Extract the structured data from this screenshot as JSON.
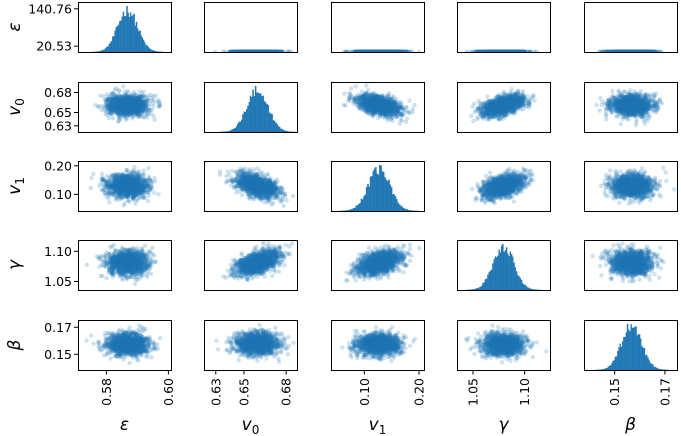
{
  "chart_data": {
    "type": "pairplot",
    "title": "",
    "parameters": [
      {
        "key": "eps",
        "symbol": "ε",
        "italic": true,
        "sub": ""
      },
      {
        "key": "v0",
        "symbol": "v",
        "italic": true,
        "sub": "0"
      },
      {
        "key": "v1",
        "symbol": "v",
        "italic": true,
        "sub": "1"
      },
      {
        "key": "gamma",
        "symbol": "γ",
        "italic": true,
        "sub": ""
      },
      {
        "key": "beta",
        "symbol": "β",
        "italic": true,
        "sub": ""
      }
    ],
    "x_ticks": [
      [
        {
          "v": 0.58,
          "label": "0.58"
        },
        {
          "v": 0.6,
          "label": "0.60"
        }
      ],
      [
        {
          "v": 0.63,
          "label": "0.63"
        },
        {
          "v": 0.65,
          "label": "0.65"
        },
        {
          "v": 0.68,
          "label": "0.68"
        }
      ],
      [
        {
          "v": 0.1,
          "label": "0.10"
        },
        {
          "v": 0.2,
          "label": "0.20"
        }
      ],
      [
        {
          "v": 1.05,
          "label": "1.05"
        },
        {
          "v": 1.1,
          "label": "1.10"
        }
      ],
      [
        {
          "v": 0.15,
          "label": "0.15"
        },
        {
          "v": 0.17,
          "label": "0.17"
        }
      ]
    ],
    "x_ranges": [
      [
        0.571,
        0.601
      ],
      [
        0.622,
        0.688
      ],
      [
        0.04,
        0.21
      ],
      [
        1.035,
        1.125
      ],
      [
        0.138,
        0.175
      ]
    ],
    "y_ticks": [
      [
        {
          "v": 140.76,
          "label": "140.76"
        },
        {
          "v": 20.53,
          "label": "20.53"
        }
      ],
      [
        {
          "v": 0.68,
          "label": "0.68"
        },
        {
          "v": 0.65,
          "label": "0.65"
        },
        {
          "v": 0.63,
          "label": "0.63"
        }
      ],
      [
        {
          "v": 0.2,
          "label": "0.20"
        },
        {
          "v": 0.1,
          "label": "0.10"
        }
      ],
      [
        {
          "v": 1.1,
          "label": "1.10"
        },
        {
          "v": 1.05,
          "label": "1.05"
        }
      ],
      [
        {
          "v": 0.17,
          "label": "0.17"
        },
        {
          "v": 0.15,
          "label": "0.15"
        }
      ]
    ],
    "y_ranges": [
      [
        0,
        161
      ],
      [
        0.62,
        0.695
      ],
      [
        0.04,
        0.215
      ],
      [
        1.035,
        1.118
      ],
      [
        0.138,
        0.175
      ]
    ],
    "distributions": {
      "eps": {
        "mean": 0.587,
        "sd": 0.0032
      },
      "v0": {
        "mean": 0.66,
        "sd": 0.0075
      },
      "v1": {
        "mean": 0.128,
        "sd": 0.02
      },
      "gamma": {
        "mean": 1.08,
        "sd": 0.01
      },
      "beta": {
        "mean": 0.157,
        "sd": 0.004
      }
    },
    "correlations": {
      "v0-v1": -0.45,
      "v0-gamma": 0.5,
      "v1-gamma": 0.45
    },
    "histogram_bins": 60,
    "points_per_panel": 1400,
    "colors": {
      "points": "#1f77b4",
      "bars": "#1f77b4",
      "frame": "#000000"
    },
    "grid": false
  }
}
